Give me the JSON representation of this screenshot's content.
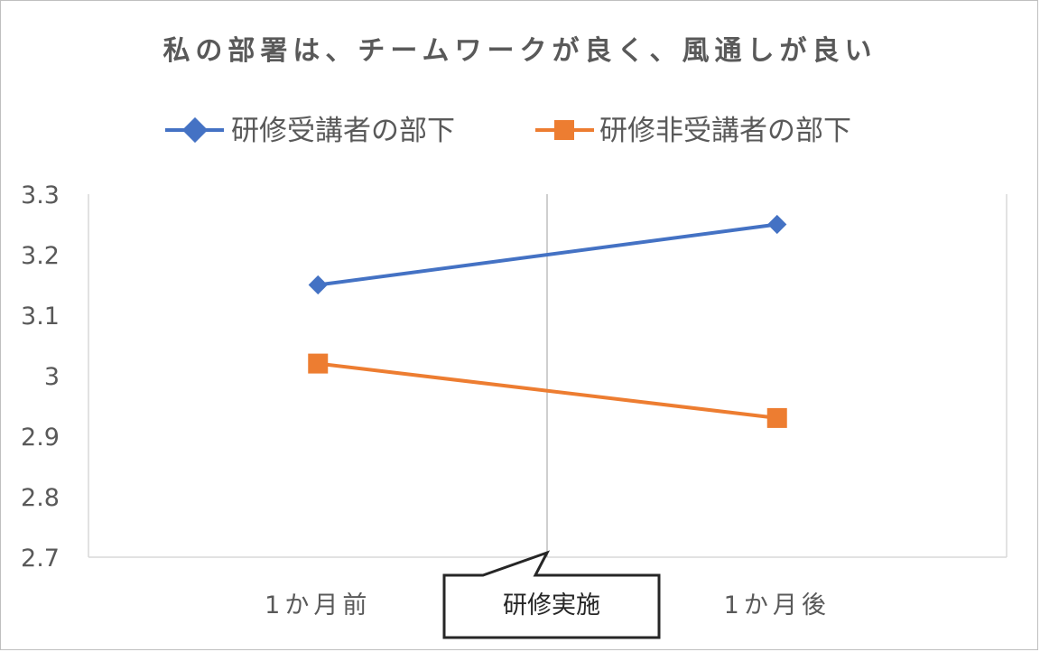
{
  "chart_data": {
    "type": "line",
    "title": "私の部署は、チームワークが良く、風通しが良い",
    "categories": [
      "1か月前",
      "1か月後"
    ],
    "series": [
      {
        "name": "研修受講者の部下",
        "values": [
          3.15,
          3.25
        ],
        "color": "#4472C4",
        "marker": "diamond"
      },
      {
        "name": "研修非受講者の部下",
        "values": [
          3.02,
          2.93
        ],
        "color": "#ED7D31",
        "marker": "square"
      }
    ],
    "ylim": [
      2.7,
      3.3
    ],
    "yticks": [
      "2.7",
      "2.8",
      "2.9",
      "3",
      "3.1",
      "3.2",
      "3.3"
    ],
    "legend_position": "top",
    "grid": false,
    "annotation": "研修実施"
  },
  "colors": {
    "axis": "#d9d9d9",
    "text": "#595959",
    "callout_border": "#262626"
  }
}
